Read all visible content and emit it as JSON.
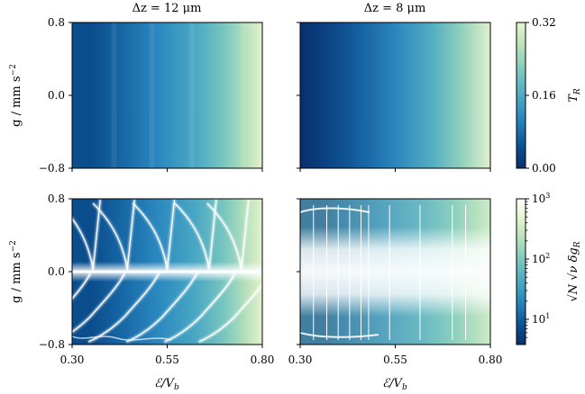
{
  "chart_data": [
    {
      "type": "heatmap",
      "panel": "top-left",
      "title": "Δz = 12 μm",
      "xlabel": "",
      "ylabel": "g / mm s⁻²",
      "xlim": [
        0.3,
        0.8
      ],
      "ylim": [
        -0.8,
        0.8
      ],
      "x_ticks": [],
      "y_ticks": [
        "0.8",
        "0.0",
        "−0.8"
      ],
      "colorbar": {
        "label": "T_R",
        "ticks": [
          "0.32",
          "0.16",
          "0.00"
        ],
        "range": [
          0.0,
          0.32
        ],
        "scale": "linear"
      },
      "description": "T_R rises from ~0.02 at E/Vb=0.30 to ~0.30 at 0.80, nearly independent of g; faint vertical banding"
    },
    {
      "type": "heatmap",
      "panel": "top-right",
      "title": "Δz = 8 μm",
      "xlabel": "",
      "ylabel": "",
      "xlim": [
        0.3,
        0.8
      ],
      "ylim": [
        -0.8,
        0.8
      ],
      "x_ticks": [],
      "y_ticks": [],
      "colorbar": {
        "label": "T_R",
        "ticks": [
          "0.32",
          "0.16",
          "0.00"
        ],
        "range": [
          0.0,
          0.32
        ],
        "scale": "linear"
      },
      "description": "smooth monotonic increase of T_R with E/Vb, independent of g"
    },
    {
      "type": "heatmap",
      "panel": "bottom-left",
      "title": "",
      "xlabel": "ℰ/V_b",
      "ylabel": "g / mm s⁻²",
      "xlim": [
        0.3,
        0.8
      ],
      "ylim": [
        -0.8,
        0.8
      ],
      "x_ticks": [
        "0.30",
        "0.55",
        "0.80"
      ],
      "y_ticks": [
        "0.8",
        "0.0",
        "−0.8"
      ],
      "colorbar": {
        "label": "√N √ν δg_R",
        "ticks": [
          "10³",
          "10²",
          "10¹"
        ],
        "range": [
          5,
          1000
        ],
        "scale": "log"
      },
      "description": "bright horizontal line at g=0; curved bright resonance lines sweeping across panel"
    },
    {
      "type": "heatmap",
      "panel": "bottom-right",
      "title": "",
      "xlabel": "ℰ/V_b",
      "ylabel": "",
      "xlim": [
        0.3,
        0.8
      ],
      "ylim": [
        -0.8,
        0.8
      ],
      "x_ticks": [
        "0.30",
        "0.55",
        "0.80"
      ],
      "y_ticks": [],
      "colorbar": {
        "label": "√N √ν δg_R",
        "ticks": [
          "10³",
          "10²",
          "10¹"
        ],
        "range": [
          5,
          1000
        ],
        "scale": "log"
      },
      "description": "broad bright horizontal band around g=0 with bright vertical lines"
    }
  ],
  "text": {
    "title_left": "Δz = 12 μm",
    "title_right": "Δz = 8 μm",
    "ylabel": "g / mm s",
    "ylabel_exp": "−2",
    "xlabel_main": "ℰ/V",
    "xlabel_sub": "b",
    "y_ticks": [
      "0.8",
      "0.0",
      "−0.8"
    ],
    "x_ticks": [
      "0.30",
      "0.55",
      "0.80"
    ],
    "cb_top_ticks": [
      "0.32",
      "0.16",
      "0.00"
    ],
    "cb_top_label_main": "T",
    "cb_top_label_sub": "R",
    "cb_bot_ticks_base": [
      "10",
      "10",
      "10"
    ],
    "cb_bot_ticks_exp": [
      "3",
      "2",
      "1"
    ],
    "cb_bot_label_main": "√N √ν δg",
    "cb_bot_label_sub": "R"
  },
  "colors": {
    "cmap": [
      "#08306b",
      "#0a4f8f",
      "#1f78b4",
      "#3b9cc0",
      "#5fb7c0",
      "#8fd0bc",
      "#bfe4bd",
      "#e6f5cf",
      "#ffffff"
    ]
  }
}
